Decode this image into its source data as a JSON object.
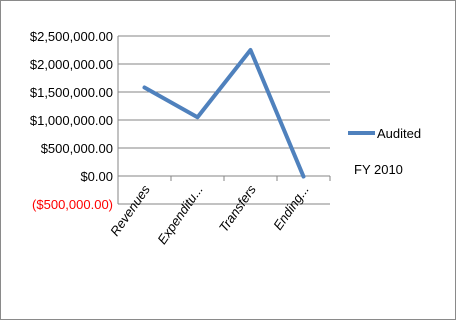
{
  "chart_data": {
    "type": "line",
    "categories": [
      "Revenues",
      "Expenditu...",
      "Transfers",
      "Ending..."
    ],
    "series": [
      {
        "name": "Audited FY 2010",
        "values": [
          1580000,
          1050000,
          2250000,
          -10000
        ]
      }
    ],
    "ylim": [
      -500000,
      2500000
    ],
    "yticks": [
      2500000,
      2000000,
      1500000,
      1000000,
      500000,
      0,
      -500000
    ],
    "ytick_labels": [
      "$2,500,000.00",
      "$2,000,000.00",
      "$1,500,000.00",
      "$1,000,000.00",
      "$500,000.00",
      "$0.00",
      "($500,000.00)"
    ],
    "negative_label_color": "#ff0000",
    "grid": true,
    "legend": {
      "position": "right",
      "lines": [
        "Audited",
        "FY 2010"
      ]
    },
    "series_color": "#4f81bd",
    "title": "",
    "xlabel": "",
    "ylabel": ""
  }
}
